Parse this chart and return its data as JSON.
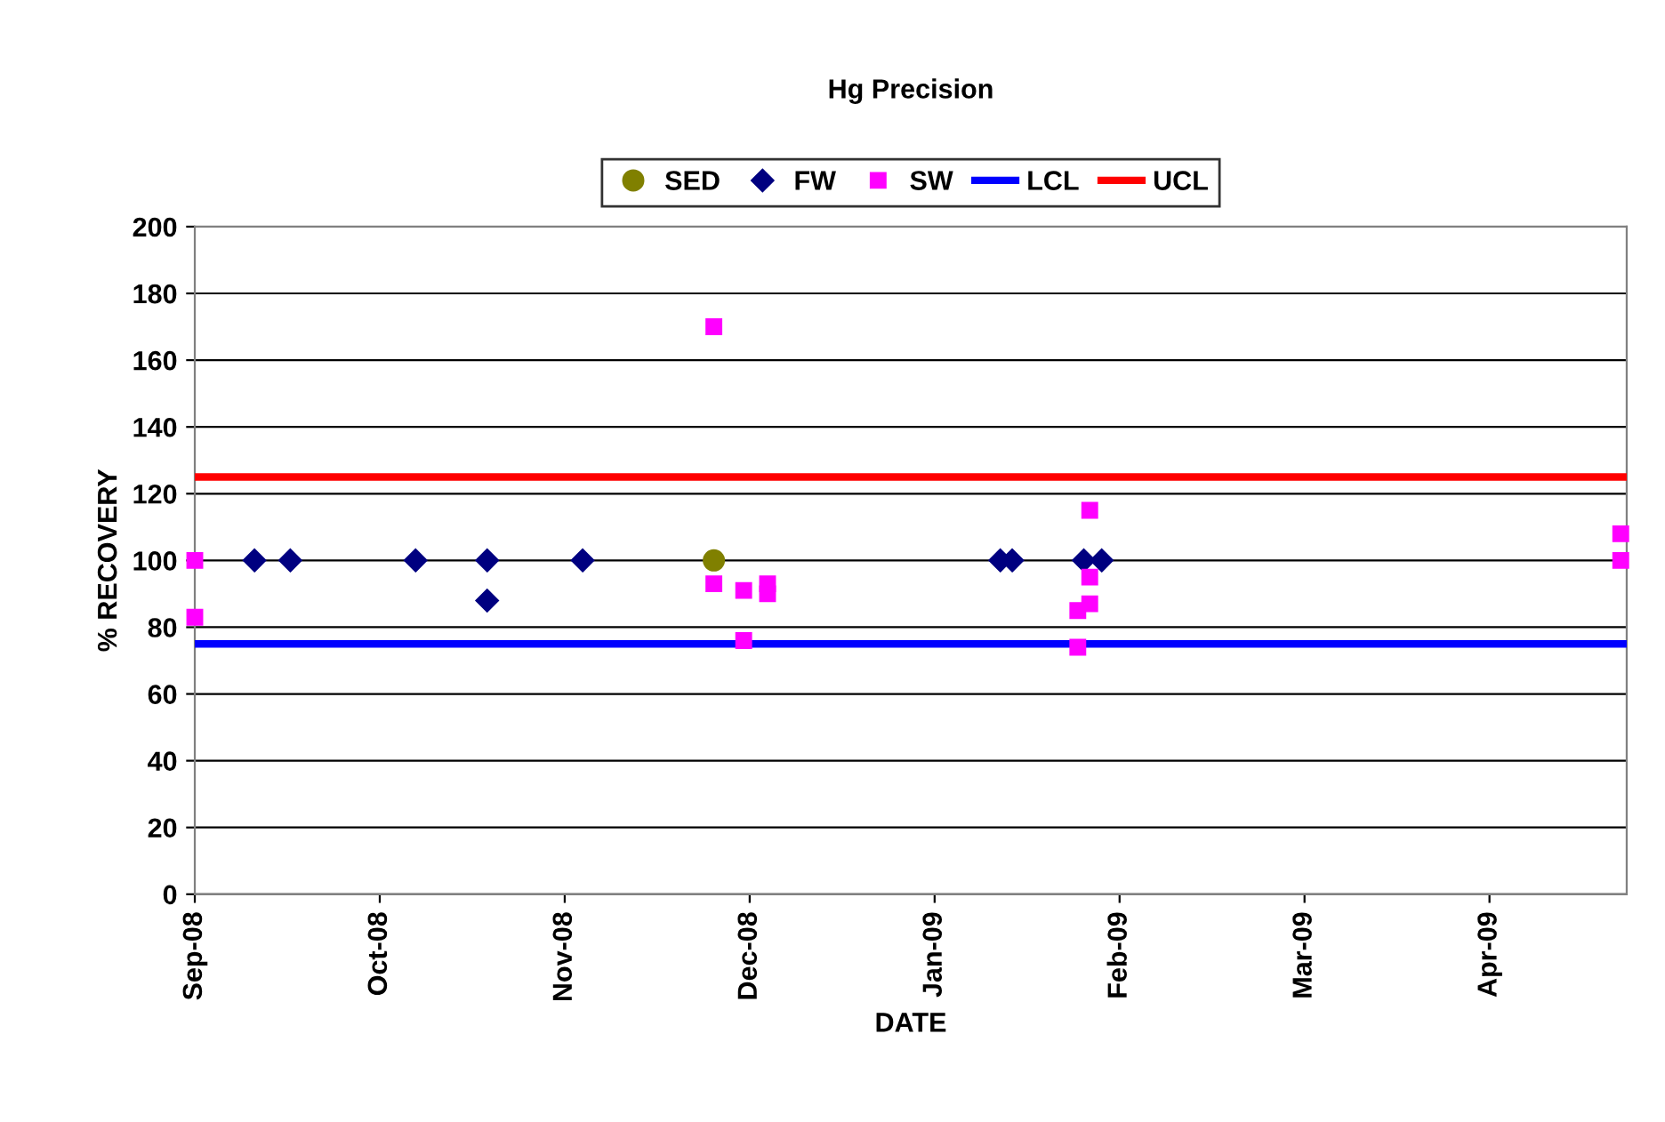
{
  "chart_data": {
    "type": "scatter",
    "title": "Hg Precision",
    "xlabel": "DATE",
    "ylabel": "% RECOVERY",
    "series": [
      {
        "name": "SED",
        "color": "#808000",
        "marker": "circle",
        "x": [
          "2008-11-27"
        ],
        "values": [
          100
        ]
      },
      {
        "name": "FW",
        "color": "#000080",
        "marker": "diamond",
        "x": [
          "2008-09-11",
          "2008-09-17",
          "2008-10-08",
          "2008-10-20",
          "2008-10-20",
          "2008-11-05",
          "2009-01-14",
          "2009-01-16",
          "2009-01-28",
          "2009-01-31"
        ],
        "values": [
          100,
          100,
          100,
          100,
          88,
          100,
          100,
          100,
          100,
          100
        ]
      },
      {
        "name": "SW",
        "color": "#ff00ff",
        "marker": "square",
        "x": [
          "2008-09-01",
          "2008-09-01",
          "2008-11-27",
          "2008-11-27",
          "2008-12-02",
          "2008-12-02",
          "2008-12-06",
          "2008-12-06",
          "2009-01-27",
          "2009-01-27",
          "2009-01-29",
          "2009-01-29",
          "2009-01-29",
          "2009-04-28",
          "2009-04-28"
        ],
        "values": [
          100,
          83,
          170,
          93,
          91,
          76,
          93,
          90,
          85,
          74,
          115,
          95,
          87,
          108,
          100
        ]
      }
    ],
    "ref_lines": [
      {
        "axis": "y",
        "value": 75,
        "label": "LCL",
        "color": "#0000ff"
      },
      {
        "axis": "y",
        "value": 125,
        "label": "UCL",
        "color": "#ff0000"
      }
    ],
    "xlim": [
      "2008-09-01",
      "2009-04-29"
    ],
    "xticks": [
      {
        "value": "2008-09-01",
        "label": "Sep-08"
      },
      {
        "value": "2008-10-02",
        "label": "Oct-08"
      },
      {
        "value": "2008-11-02",
        "label": "Nov-08"
      },
      {
        "value": "2008-12-03",
        "label": "Dec-08"
      },
      {
        "value": "2009-01-03",
        "label": "Jan-09"
      },
      {
        "value": "2009-02-03",
        "label": "Feb-09"
      },
      {
        "value": "2009-03-06",
        "label": "Mar-09"
      },
      {
        "value": "2009-04-06",
        "label": "Apr-09"
      }
    ],
    "ylim": [
      0,
      200
    ],
    "yticks": [
      0,
      20,
      40,
      60,
      80,
      100,
      120,
      140,
      160,
      180,
      200
    ],
    "grid": "y",
    "legend": "top"
  }
}
